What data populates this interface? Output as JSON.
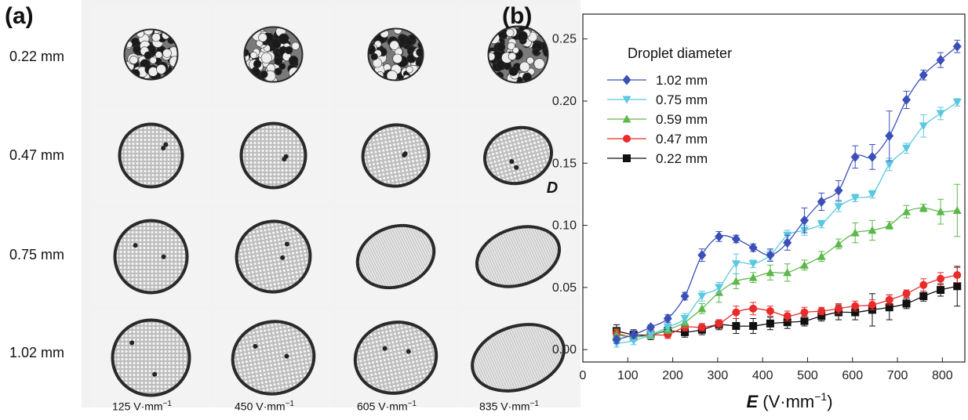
{
  "panel_a": {
    "label": "(a)",
    "row_labels": [
      "0.22 mm",
      "0.47 mm",
      "0.75 mm",
      "1.02 mm"
    ],
    "col_labels": [
      {
        "num": "125 V·mm",
        "sup": "−1"
      },
      {
        "num": "450 V·mm",
        "sup": "−1"
      },
      {
        "num": "605 V·mm",
        "sup": "−1"
      },
      {
        "num": "835 V·mm",
        "sup": "−1"
      }
    ]
  },
  "panel_b": {
    "label": "(b)"
  },
  "chart_data": {
    "type": "line",
    "ylabel": "D",
    "xlabel_symbol": "E",
    "xlabel_unit": "(V·mm",
    "xlabel_unit_sup": "−1",
    "xlabel_close": ")",
    "xlim": [
      0,
      850
    ],
    "ylim": [
      -0.01,
      0.27
    ],
    "xticks": [
      0,
      100,
      200,
      300,
      400,
      500,
      600,
      700,
      800
    ],
    "yticks": [
      0.0,
      0.05,
      0.1,
      0.15,
      0.2,
      0.25
    ],
    "ytick_labels": [
      "0.00",
      "0.05",
      "0.10",
      "0.15",
      "0.20",
      "0.25"
    ],
    "legend_title": "Droplet diameter",
    "legend_placement": "top-left",
    "x": [
      75,
      113,
      151,
      189,
      227,
      265,
      303,
      341,
      379,
      417,
      455,
      493,
      531,
      569,
      606,
      644,
      682,
      720,
      758,
      796,
      833
    ],
    "series": [
      {
        "name": "1.02 mm",
        "color": "#3b4fb8",
        "marker": "diamond",
        "values": [
          0.008,
          0.012,
          0.018,
          0.025,
          0.043,
          0.076,
          0.091,
          0.089,
          0.082,
          0.076,
          0.086,
          0.104,
          0.119,
          0.128,
          0.155,
          0.155,
          0.172,
          0.201,
          0.221,
          0.233,
          0.244
        ],
        "errors": [
          0.003,
          0.003,
          0.002,
          0.003,
          0.003,
          0.005,
          0.004,
          0.003,
          0.003,
          0.005,
          0.006,
          0.01,
          0.007,
          0.008,
          0.009,
          0.01,
          0.02,
          0.007,
          0.004,
          0.006,
          0.005
        ]
      },
      {
        "name": "0.75 mm",
        "color": "#5bc8e0",
        "marker": "triangle-down",
        "values": [
          0.005,
          0.007,
          0.012,
          0.018,
          0.025,
          0.043,
          0.05,
          0.069,
          0.069,
          0.076,
          0.092,
          0.096,
          0.101,
          0.115,
          0.122,
          0.125,
          0.149,
          0.162,
          0.18,
          0.19,
          0.199
        ],
        "errors": [
          0.003,
          0.003,
          0.002,
          0.003,
          0.004,
          0.004,
          0.004,
          0.008,
          0.003,
          0.004,
          0.004,
          0.004,
          0.003,
          0.004,
          0.003,
          0.003,
          0.005,
          0.004,
          0.009,
          0.005,
          0.003
        ]
      },
      {
        "name": "0.59 mm",
        "color": "#5cb84a",
        "marker": "triangle-up",
        "values": [
          0.012,
          0.01,
          0.012,
          0.016,
          0.022,
          0.033,
          0.046,
          0.055,
          0.058,
          0.062,
          0.062,
          0.068,
          0.075,
          0.085,
          0.094,
          0.096,
          0.1,
          0.111,
          0.114,
          0.111,
          0.112
        ],
        "errors": [
          0.004,
          0.003,
          0.003,
          0.003,
          0.004,
          0.004,
          0.008,
          0.006,
          0.004,
          0.006,
          0.007,
          0.004,
          0.004,
          0.004,
          0.008,
          0.008,
          0.003,
          0.005,
          0.003,
          0.01,
          0.021
        ]
      },
      {
        "name": "0.47 mm",
        "color": "#e82b2b",
        "marker": "circle",
        "values": [
          0.013,
          0.01,
          0.012,
          0.012,
          0.018,
          0.018,
          0.021,
          0.03,
          0.033,
          0.031,
          0.027,
          0.03,
          0.031,
          0.033,
          0.035,
          0.036,
          0.04,
          0.045,
          0.052,
          0.057,
          0.06
        ],
        "errors": [
          0.004,
          0.003,
          0.003,
          0.003,
          0.003,
          0.003,
          0.003,
          0.005,
          0.005,
          0.004,
          0.004,
          0.004,
          0.003,
          0.004,
          0.004,
          0.004,
          0.004,
          0.003,
          0.005,
          0.005,
          0.006
        ]
      },
      {
        "name": "0.22 mm",
        "color": "#111111",
        "marker": "square",
        "values": [
          0.015,
          0.012,
          0.012,
          0.015,
          0.014,
          0.016,
          0.02,
          0.019,
          0.019,
          0.021,
          0.022,
          0.023,
          0.027,
          0.03,
          0.03,
          0.032,
          0.034,
          0.037,
          0.043,
          0.048,
          0.051
        ],
        "errors": [
          0.005,
          0.004,
          0.004,
          0.004,
          0.004,
          0.004,
          0.004,
          0.006,
          0.006,
          0.005,
          0.005,
          0.004,
          0.004,
          0.006,
          0.006,
          0.013,
          0.01,
          0.004,
          0.004,
          0.005,
          0.016
        ]
      }
    ]
  }
}
